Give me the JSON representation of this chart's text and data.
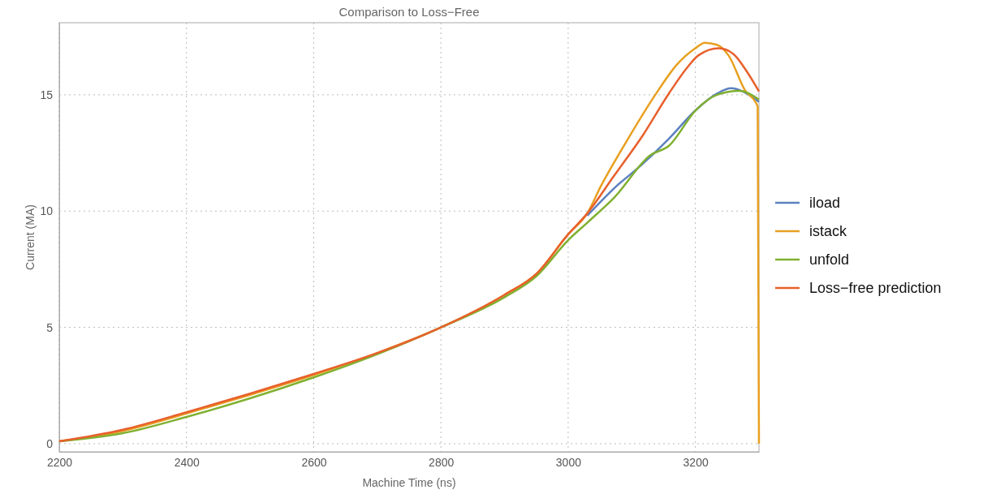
{
  "chart_data": {
    "type": "line",
    "title": "Comparison to Loss−Free",
    "xlabel": "Machine Time (ns)",
    "ylabel": "Current (MA)",
    "xlim": [
      2200,
      3300
    ],
    "ylim": [
      -0.35,
      18.1
    ],
    "xticks": [
      2200,
      2400,
      2600,
      2800,
      3000,
      3200
    ],
    "yticks": [
      0,
      5,
      10,
      15
    ],
    "grid": true,
    "legend": "right",
    "line_style": "solid",
    "marker": "none",
    "series": [
      {
        "name": "iload",
        "color": "#5b80c0",
        "x": [
          3030,
          3073,
          3116,
          3158,
          3201,
          3234,
          3256,
          3278,
          3300
        ],
        "values": [
          9.8,
          11.0,
          12.0,
          13.1,
          14.35,
          15.05,
          15.28,
          15.1,
          14.7
        ]
      },
      {
        "name": "istack",
        "color": "#e8a020",
        "x": [
          2200,
          2300,
          2400,
          2500,
          2600,
          2700,
          2800,
          2900,
          2950,
          3000,
          3030,
          3052,
          3094,
          3137,
          3171,
          3200,
          3215,
          3234,
          3252,
          3278,
          3298,
          3300
        ],
        "values": [
          0.1,
          0.55,
          1.3,
          2.1,
          2.95,
          3.9,
          5.0,
          6.4,
          7.3,
          9.0,
          9.9,
          11.1,
          13.1,
          15.0,
          16.3,
          17.0,
          17.24,
          17.15,
          16.7,
          15.2,
          14.5,
          0
        ]
      },
      {
        "name": "unfold",
        "color": "#80b030",
        "x": [
          2200,
          2300,
          2400,
          2500,
          2600,
          2700,
          2800,
          2900,
          2950,
          3000,
          3030,
          3073,
          3129,
          3158,
          3201,
          3234,
          3269,
          3300
        ],
        "values": [
          0.1,
          0.45,
          1.15,
          1.95,
          2.85,
          3.85,
          5.0,
          6.3,
          7.2,
          8.75,
          9.5,
          10.6,
          12.4,
          12.8,
          14.35,
          15.0,
          15.17,
          14.8
        ]
      },
      {
        "name": "Loss−free prediction",
        "color": "#e8602c",
        "x": [
          2200,
          2300,
          2400,
          2500,
          2600,
          2700,
          2800,
          2900,
          2950,
          3000,
          3030,
          3073,
          3116,
          3158,
          3188,
          3205,
          3237,
          3260,
          3281,
          3300
        ],
        "values": [
          0.1,
          0.6,
          1.35,
          2.15,
          3.0,
          3.9,
          5.0,
          6.4,
          7.3,
          9.0,
          9.9,
          11.55,
          13.2,
          15.04,
          16.2,
          16.7,
          17.0,
          16.75,
          16.0,
          15.15
        ]
      }
    ]
  }
}
